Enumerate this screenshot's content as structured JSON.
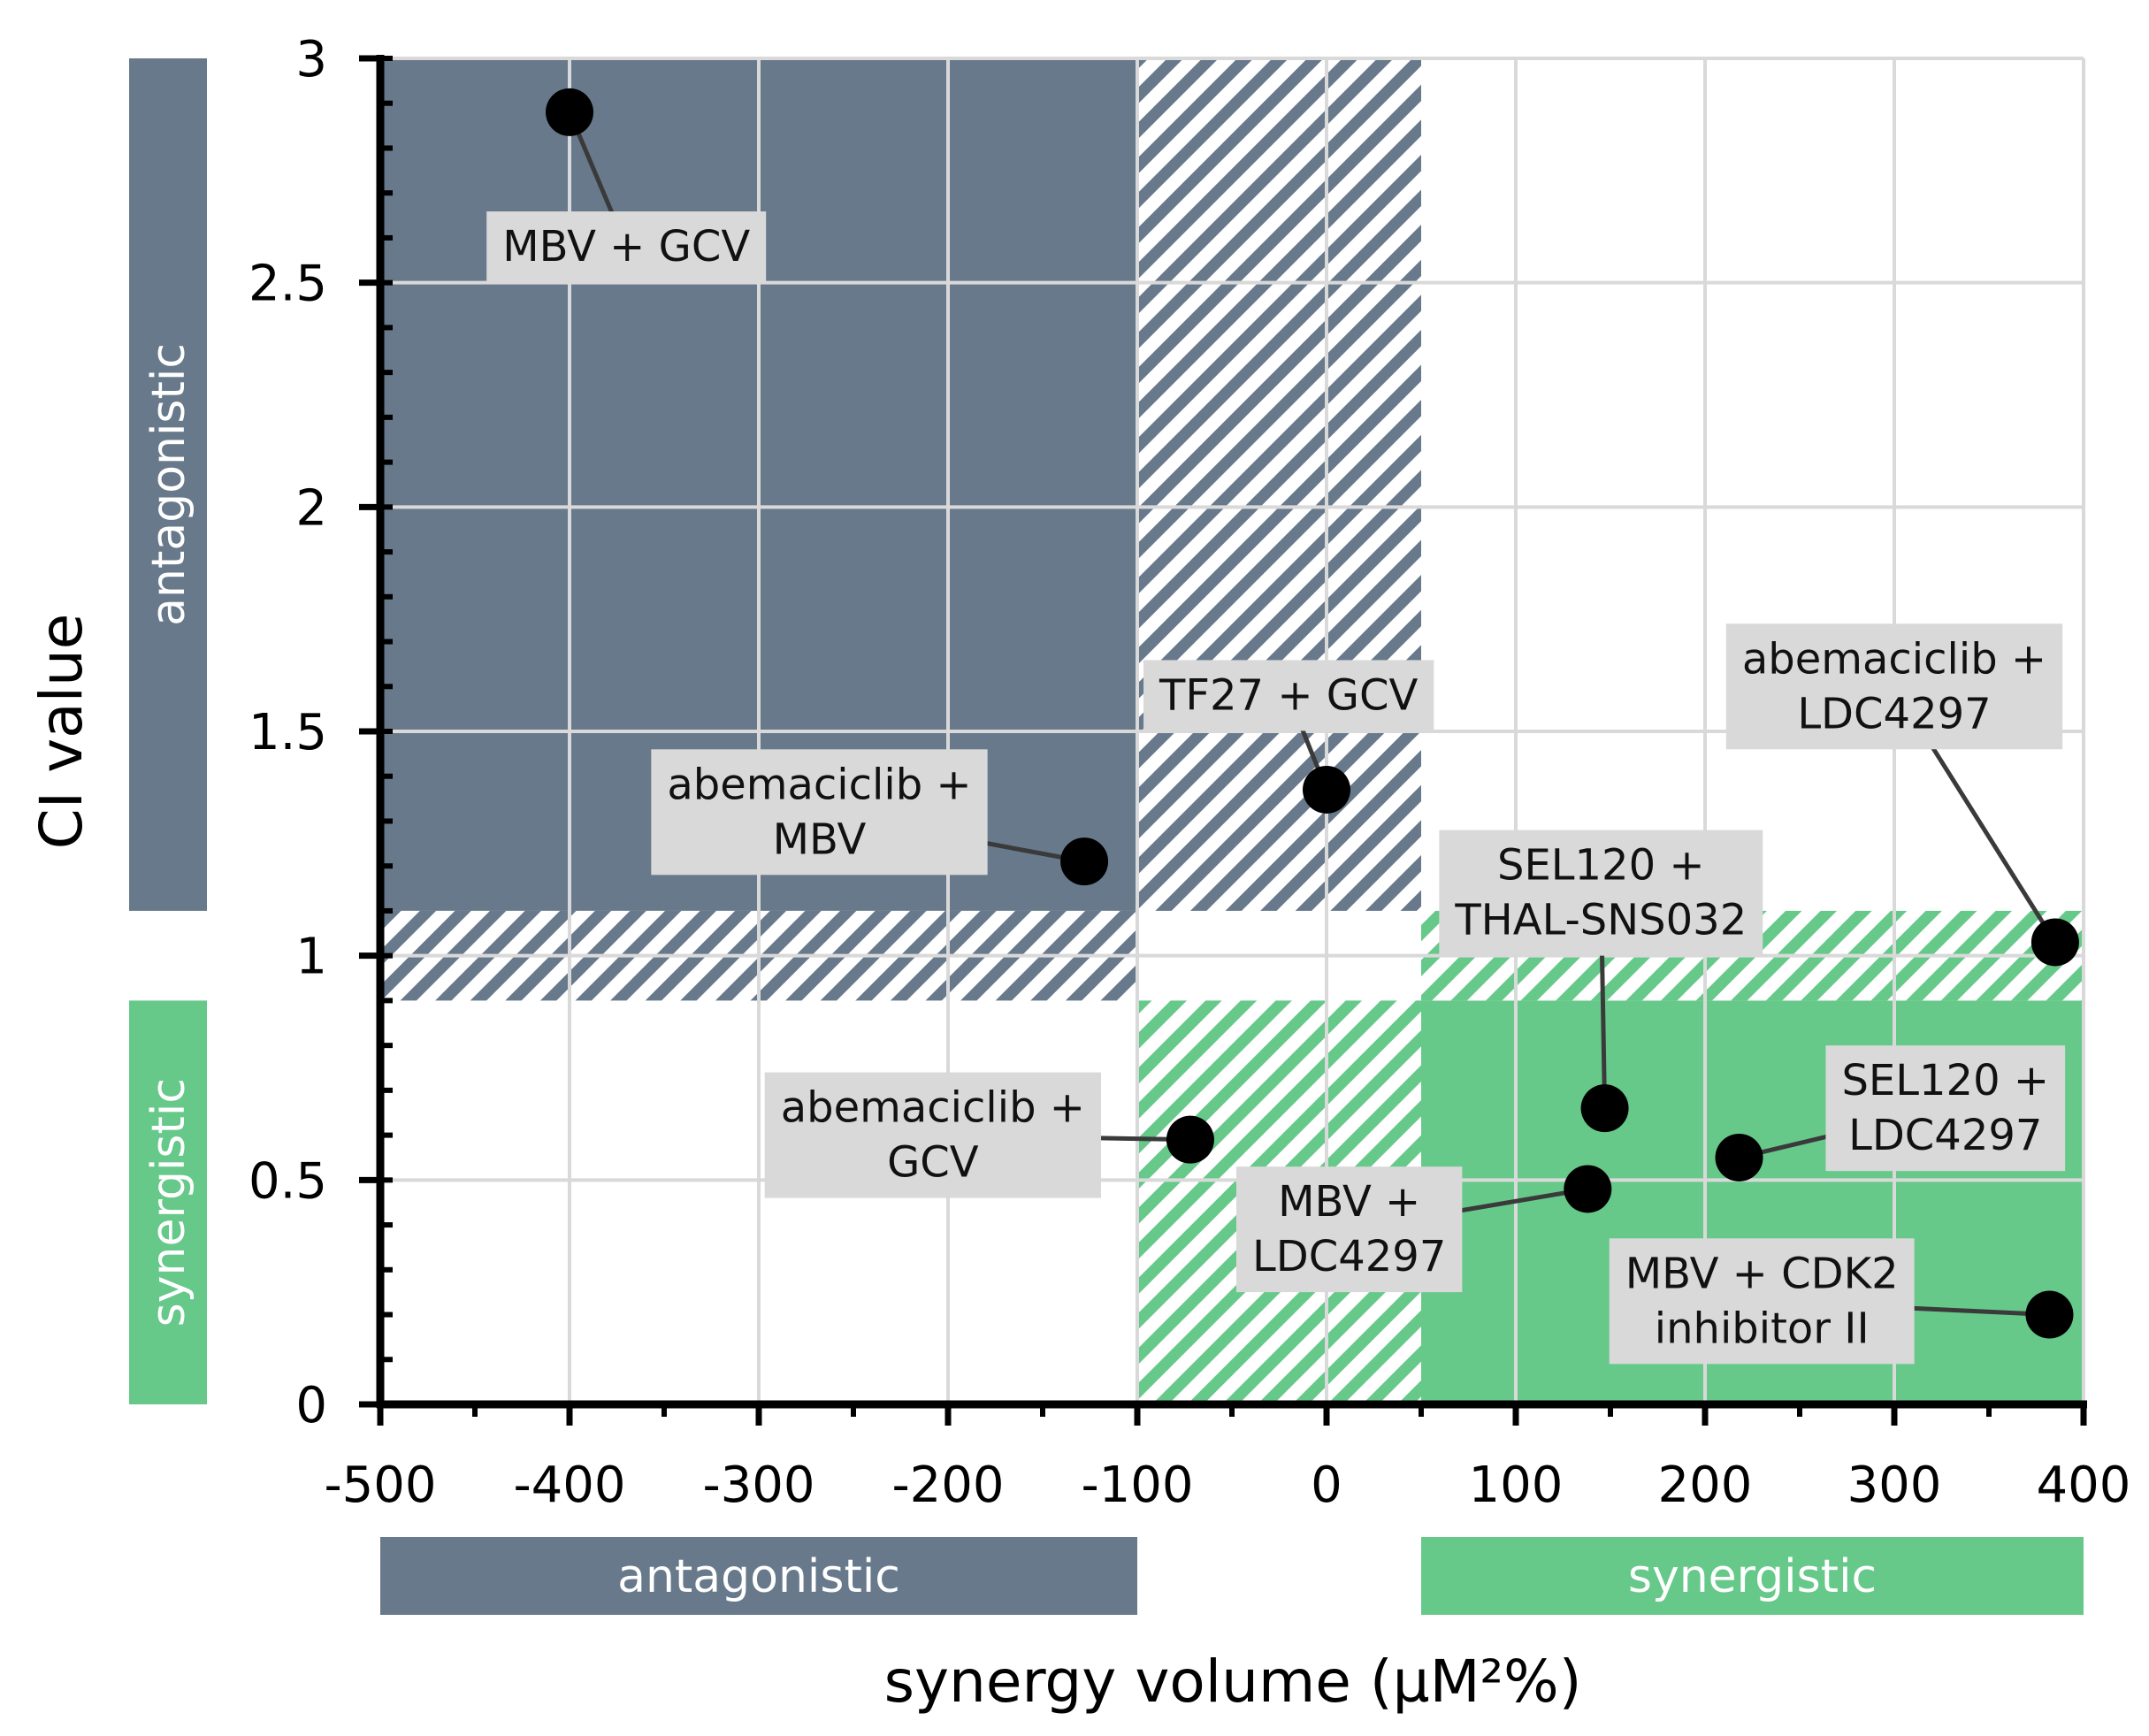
{
  "colors": {
    "antagonistic": "#67798b",
    "synergistic": "#66c98a",
    "grid": "#d9d9d9",
    "label_box": "#d9d9d9",
    "point": "#000000",
    "leader": "#3a3a3a"
  },
  "chart_data": {
    "type": "scatter",
    "xlabel": "synergy volume (µM²%)",
    "ylabel": "CI value",
    "xlim": [
      -500,
      400
    ],
    "ylim": [
      0,
      3
    ],
    "grid": true,
    "x_ticks": [
      -500,
      -400,
      -300,
      -200,
      -100,
      0,
      100,
      200,
      300,
      400
    ],
    "x_tick_labels": [
      "-500",
      "-400",
      "-300",
      "-200",
      "-100",
      "0",
      "100",
      "200",
      "300",
      "400"
    ],
    "y_ticks": [
      0,
      0.5,
      1,
      1.5,
      2,
      2.5,
      3
    ],
    "y_tick_labels": [
      "0",
      "0.5",
      "1",
      "1.5",
      "2",
      "2.5",
      "3"
    ],
    "regions": {
      "x_antagonistic_max": -100,
      "x_synergistic_min": 50,
      "y_antagonistic_min": 1.1,
      "y_synergistic_max": 0.9
    },
    "band_labels": {
      "x_antagonistic": "antagonistic",
      "x_synergistic": "synergistic",
      "y_antagonistic": "antagonistic",
      "y_synergistic": "synergistic"
    },
    "points": [
      {
        "label": [
          "MBV + GCV"
        ],
        "x": -400,
        "y": 2.88,
        "lx": -370,
        "ly": 2.58
      },
      {
        "label": [
          "abemaciclib +",
          "MBV"
        ],
        "x": -128,
        "y": 1.21,
        "lx": -268,
        "ly": 1.32
      },
      {
        "label": [
          "TF27 + GCV"
        ],
        "x": 0,
        "y": 1.37,
        "lx": -20,
        "ly": 1.58
      },
      {
        "label": [
          "abemaciclib +",
          "GCV"
        ],
        "x": -72,
        "y": 0.59,
        "lx": -208,
        "ly": 0.6
      },
      {
        "label": [
          "SEL120 +",
          "THAL-SNS032"
        ],
        "x": 147,
        "y": 0.66,
        "lx": 145,
        "ly": 1.14
      },
      {
        "label": [
          "MBV +",
          "LDC4297"
        ],
        "x": 138,
        "y": 0.48,
        "lx": 12,
        "ly": 0.39
      },
      {
        "label": [
          "abemaciclib +",
          "LDC4297"
        ],
        "x": 385,
        "y": 1.03,
        "lx": 300,
        "ly": 1.6
      },
      {
        "label": [
          "SEL120 +",
          "LDC4297"
        ],
        "x": 218,
        "y": 0.55,
        "lx": 327,
        "ly": 0.66
      },
      {
        "label": [
          "MBV + CDK2",
          "inhibitor II"
        ],
        "x": 382,
        "y": 0.2,
        "lx": 230,
        "ly": 0.23
      }
    ]
  }
}
